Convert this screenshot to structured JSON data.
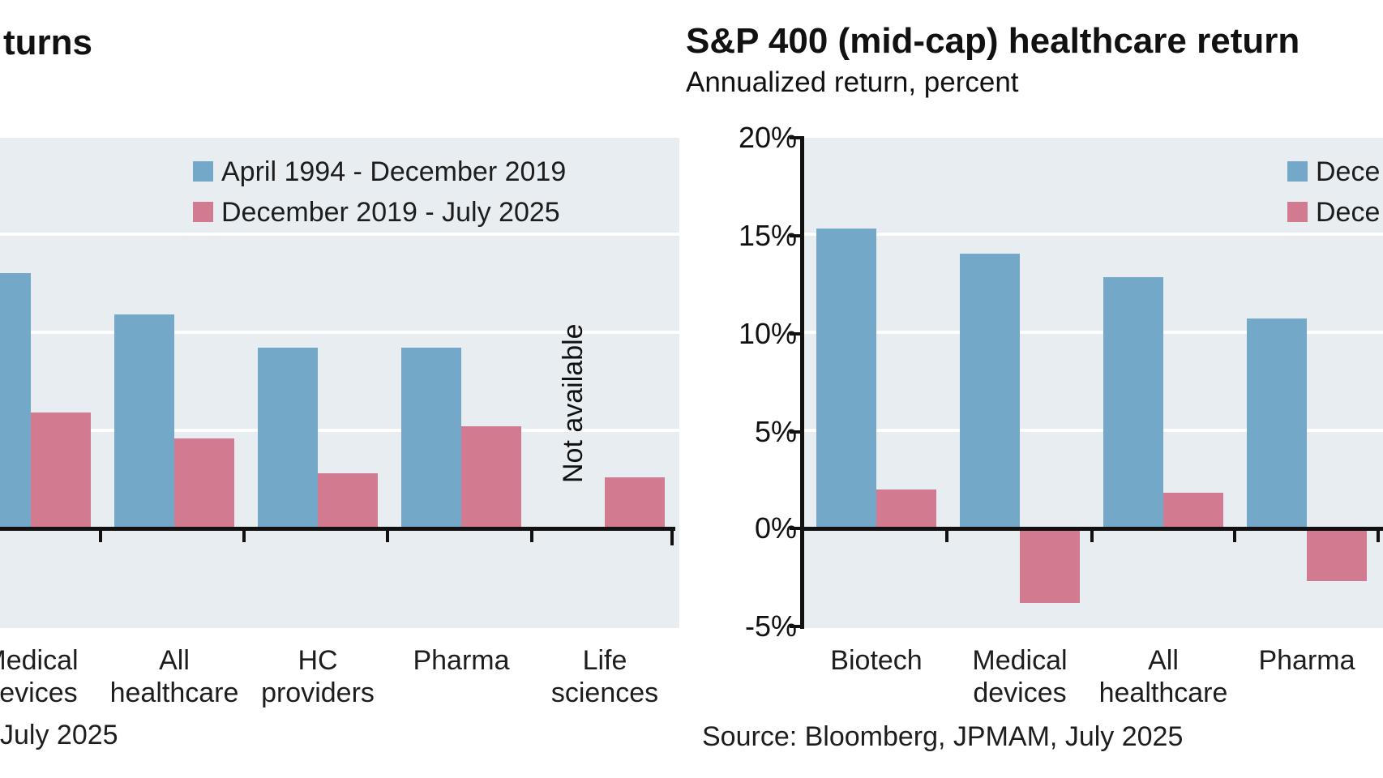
{
  "colors": {
    "bar_blue": "#74a8c8",
    "bar_pink": "#d27b90",
    "plot_background": "#e7edf1",
    "gridline": "#ffffff",
    "axis": "#111111",
    "text": "#1d1d1d"
  },
  "left_chart": {
    "title_fragment": "turns",
    "source_fragment": "July 2025",
    "not_available_label": "Not available",
    "legend": [
      {
        "label": "April 1994 - December 2019",
        "color": "#74a8c8"
      },
      {
        "label": "December 2019 - July 2025",
        "color": "#d27b90"
      }
    ],
    "chart_data": {
      "type": "bar",
      "title_visible_fragment": "turns",
      "categories": [
        "Medical devices",
        "All healthcare",
        "HC providers",
        "Pharma",
        "Life sciences"
      ],
      "category_label_lines": [
        [
          "Medical",
          "devices"
        ],
        [
          "All",
          "healthcare"
        ],
        [
          "HC",
          "providers"
        ],
        [
          "Pharma"
        ],
        [
          "Life",
          "sciences"
        ]
      ],
      "series": [
        {
          "name": "April 1994 - December 2019",
          "color": "#74a8c8",
          "values": [
            13.0,
            10.9,
            9.2,
            9.2,
            null
          ]
        },
        {
          "name": "December 2019 - July 2025",
          "color": "#d27b90",
          "values": [
            5.9,
            4.6,
            2.8,
            5.2,
            2.6
          ]
        }
      ],
      "null_annotation": "Not available",
      "unit": "percent",
      "ylim": [
        -5.1,
        20
      ],
      "gridlines_pct": [
        5,
        10,
        15
      ],
      "grid": true,
      "legend_position": "top-right",
      "note_visible": "chart cropped at left edge of screenshot"
    }
  },
  "right_chart": {
    "title": "S&P 400 (mid-cap) healthcare return",
    "subtitle": "Annualized return, percent",
    "source": "Source: Bloomberg, JPMAM, July 2025",
    "y_tick_labels": [
      "20%",
      "15%",
      "10%",
      "5%",
      "0%",
      "-5%"
    ],
    "legend": [
      {
        "label_fragment": "Dece",
        "color": "#74a8c8"
      },
      {
        "label_fragment": "Dece",
        "color": "#d27b90"
      }
    ],
    "chart_data": {
      "type": "bar",
      "title": "S&P 400 (mid-cap) healthcare return",
      "ylabel": "Annualized return, percent",
      "categories": [
        "Biotech",
        "Medical devices",
        "All healthcare",
        "Pharma"
      ],
      "category_label_lines": [
        [
          "Biotech"
        ],
        [
          "Medical",
          "devices"
        ],
        [
          "All",
          "healthcare"
        ],
        [
          "Pharma"
        ]
      ],
      "series": [
        {
          "name": "Dece",
          "color": "#74a8c8",
          "values": [
            15.3,
            14.0,
            12.8,
            10.7
          ]
        },
        {
          "name": "Dece",
          "color": "#d27b90",
          "values": [
            2.0,
            -3.8,
            1.8,
            -2.7
          ]
        }
      ],
      "unit": "percent",
      "ylim": [
        -5.1,
        20
      ],
      "y_ticks": [
        20,
        15,
        10,
        5,
        0,
        -5
      ],
      "gridlines_pct": [
        5,
        10,
        15
      ],
      "grid": true,
      "legend_position": "top-right",
      "note_visible": "chart cropped at right edge of screenshot"
    }
  }
}
